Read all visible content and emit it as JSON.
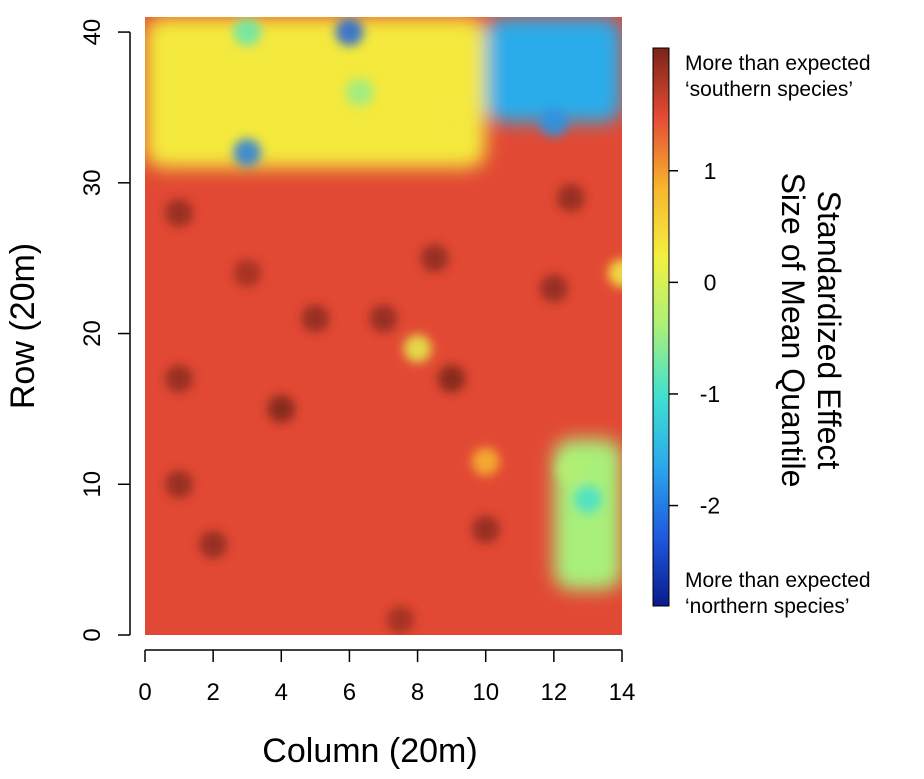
{
  "chart_data": {
    "type": "heatmap",
    "xlabel": "Column (20m)",
    "ylabel": "Row (20m)",
    "xlim": [
      0,
      14
    ],
    "ylim": [
      0,
      41
    ],
    "x_ticks": [
      "0",
      "2",
      "4",
      "6",
      "8",
      "10",
      "12",
      "14"
    ],
    "y_ticks": [
      "0",
      "10",
      "20",
      "30",
      "40"
    ],
    "colorbar": {
      "title_line1": "Standardized Effect",
      "title_line2": "Size of Mean Quantile",
      "ticks": [
        "1",
        "0",
        "-1",
        "-2"
      ],
      "range": [
        -2.9,
        2.1
      ],
      "top_label_line1": "More than expected",
      "top_label_line2": "‘southern species’",
      "bottom_label_line1": "More than expected",
      "bottom_label_line2": "‘northern species’",
      "colors": [
        "#0a1a8c",
        "#1f5ae0",
        "#2aa8ec",
        "#40e0d0",
        "#a8f07a",
        "#f4f040",
        "#f7b52c",
        "#e64b35",
        "#7a2418"
      ]
    },
    "base_value": 1.5,
    "regions": [
      {
        "name": "northwest-mixed-band",
        "x": [
          0,
          10
        ],
        "y": [
          31,
          41
        ],
        "value": 0.3
      },
      {
        "name": "northeast-negative",
        "x": [
          10,
          14
        ],
        "y": [
          34,
          41
        ],
        "value": -1.6
      },
      {
        "name": "southeast-negative",
        "x": [
          12,
          14
        ],
        "y": [
          3,
          13
        ],
        "value": -0.4
      }
    ],
    "hotspots": [
      {
        "x": 3,
        "y": 32,
        "value": -2.0
      },
      {
        "x": 3,
        "y": 40,
        "value": -0.8
      },
      {
        "x": 6,
        "y": 40,
        "value": -2.2
      },
      {
        "x": 6.3,
        "y": 36,
        "value": -0.5
      },
      {
        "x": 12,
        "y": 34,
        "value": -1.8
      },
      {
        "x": 13,
        "y": 9,
        "value": -1.0
      },
      {
        "x": 12.5,
        "y": 11,
        "value": -0.3
      },
      {
        "x": 8,
        "y": 19,
        "value": 0.1
      },
      {
        "x": 9,
        "y": 34,
        "value": 0.3
      },
      {
        "x": 14,
        "y": 24,
        "value": 0.2
      },
      {
        "x": 10,
        "y": 11.5,
        "value": 0.8
      },
      {
        "x": 1,
        "y": 17,
        "value": 2.0
      },
      {
        "x": 1,
        "y": 28,
        "value": 2.0
      },
      {
        "x": 4,
        "y": 15,
        "value": 2.1
      },
      {
        "x": 8.5,
        "y": 25,
        "value": 2.0
      },
      {
        "x": 7,
        "y": 21,
        "value": 2.0
      },
      {
        "x": 5,
        "y": 21,
        "value": 2.0
      },
      {
        "x": 1,
        "y": 10,
        "value": 2.0
      },
      {
        "x": 2,
        "y": 6,
        "value": 2.0
      },
      {
        "x": 12.5,
        "y": 29,
        "value": 2.0
      },
      {
        "x": 12,
        "y": 23,
        "value": 2.0
      },
      {
        "x": 9,
        "y": 17,
        "value": 2.1
      },
      {
        "x": 10,
        "y": 7,
        "value": 2.0
      },
      {
        "x": 3,
        "y": 24,
        "value": 1.9
      },
      {
        "x": 7.5,
        "y": 1,
        "value": 1.9
      }
    ]
  }
}
